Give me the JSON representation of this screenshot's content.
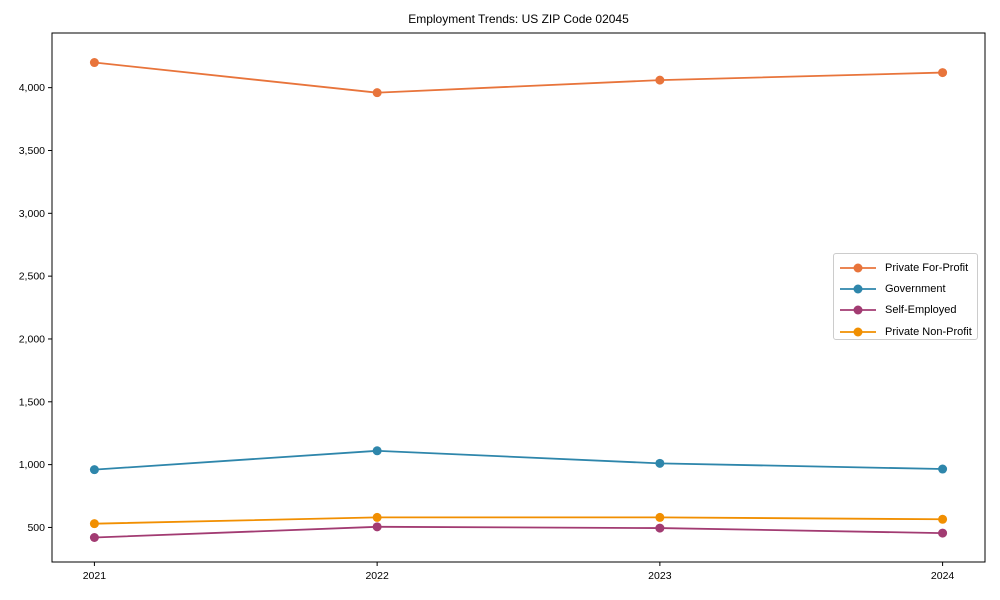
{
  "figure": {
    "background": "#ffffff",
    "text_color": "#000000",
    "spine_color": "#000000",
    "legend_border_color": "#cccccc"
  },
  "chart_data": {
    "type": "line",
    "title": "Employment Trends: US ZIP Code 02045",
    "xlabel": "",
    "ylabel": "",
    "categories": [
      "2021",
      "2022",
      "2023",
      "2024"
    ],
    "series": [
      {
        "name": "Private For-Profit",
        "color": "#E8743B",
        "values": [
          4200,
          3960,
          4060,
          4120
        ]
      },
      {
        "name": "Government",
        "color": "#2E86AB",
        "values": [
          960,
          1110,
          1010,
          965
        ]
      },
      {
        "name": "Self-Employed",
        "color": "#A23B72",
        "values": [
          420,
          505,
          495,
          455
        ]
      },
      {
        "name": "Private Non-Profit",
        "color": "#F18F01",
        "values": [
          530,
          580,
          580,
          565
        ]
      }
    ],
    "yticks": [
      500,
      1000,
      1500,
      2000,
      2500,
      3000,
      3500,
      4000
    ],
    "ytick_labels": [
      "500",
      "1,000",
      "1,500",
      "2,000",
      "2,500",
      "3,000",
      "3,500",
      "4,000"
    ],
    "ylim": [
      225,
      4435
    ],
    "xlim": [
      -0.15,
      3.15
    ],
    "grid": false,
    "legend_position": "center-right",
    "marker": "circle",
    "marker_radius": 4.5,
    "line_width": 1.8
  }
}
